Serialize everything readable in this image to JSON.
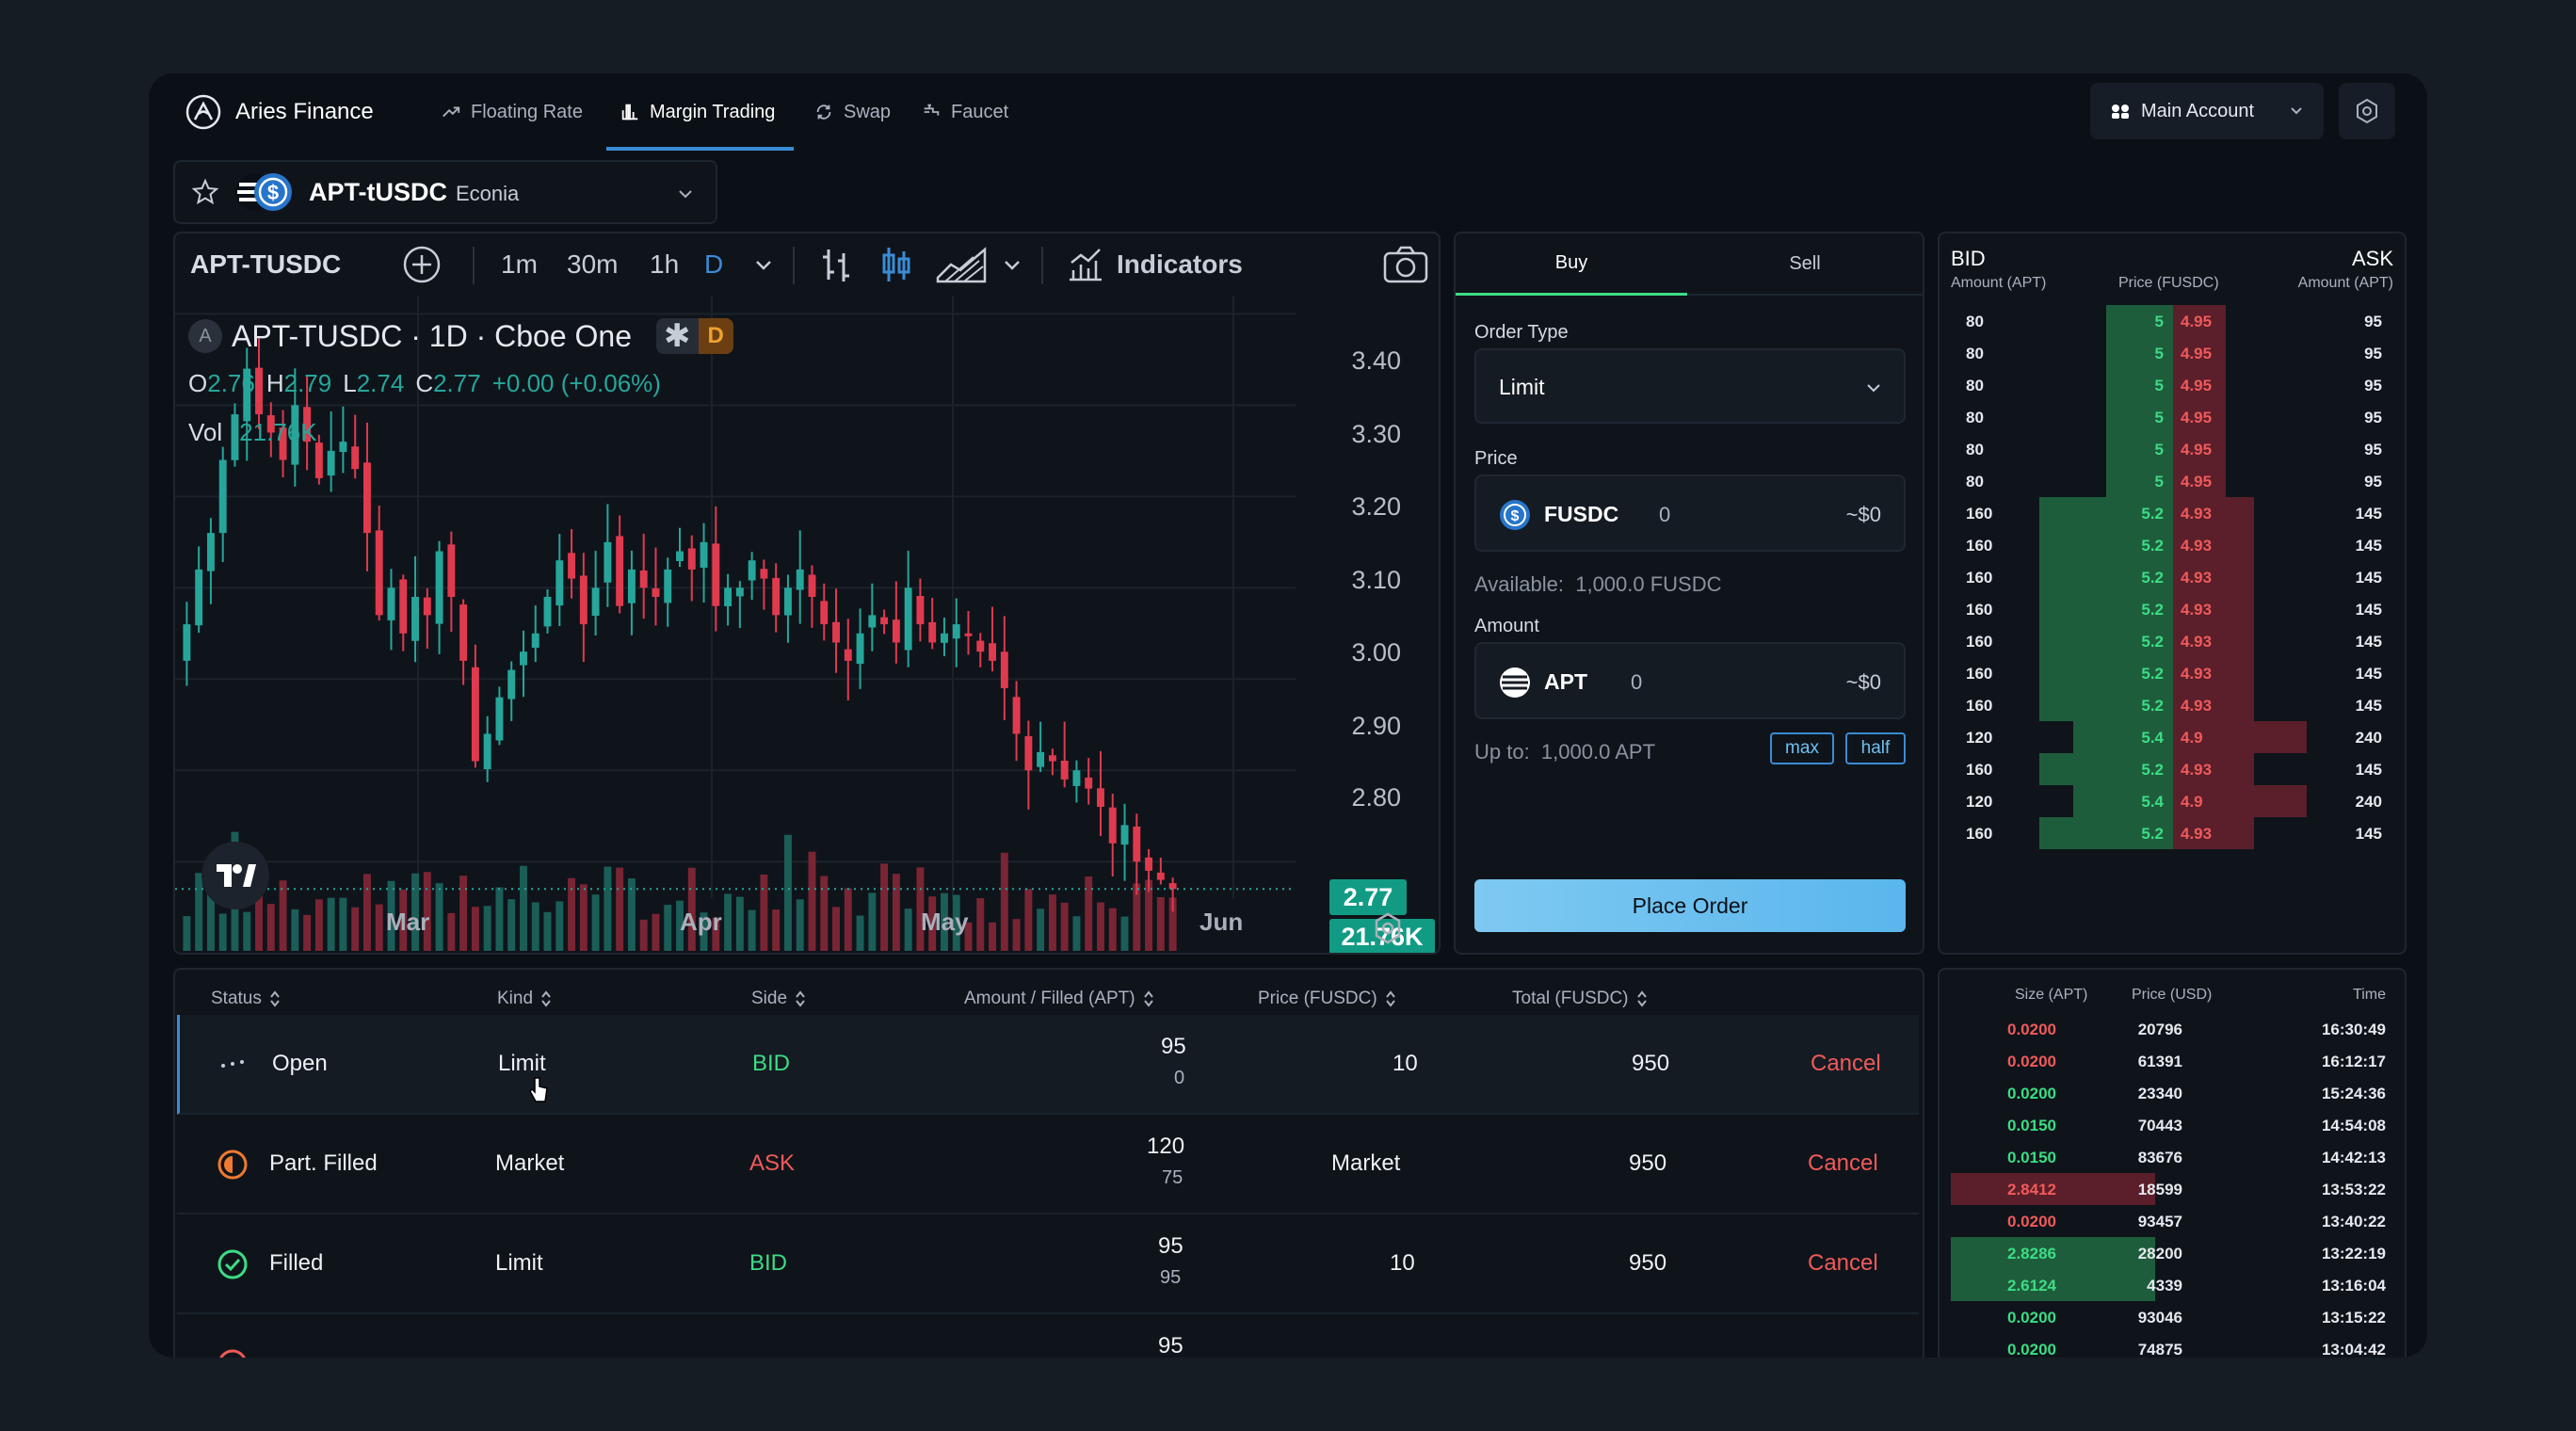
{
  "app": {
    "name": "Aries Finance",
    "nav": [
      {
        "label": "Floating Rate",
        "icon": "trending-up-icon",
        "active": false
      },
      {
        "label": "Margin Trading",
        "icon": "bar-chart-icon",
        "active": true
      },
      {
        "label": "Swap",
        "icon": "swap-icon",
        "active": false
      },
      {
        "label": "Faucet",
        "icon": "faucet-icon",
        "active": false
      }
    ],
    "account": "Main Account"
  },
  "pair_selector": {
    "pair": "APT-tUSDC",
    "exchange": "Econia"
  },
  "chart_toolbar": {
    "symbol": "APT-TUSDC",
    "intervals": [
      "1m",
      "30m",
      "1h",
      "D"
    ],
    "active_interval": "D",
    "indicators_label": "Indicators"
  },
  "chart_legend": {
    "title": "APT-TUSDC · 1D · Cboe One",
    "badge": "D",
    "o_label": "O",
    "o": "2.76",
    "h_label": "H",
    "h": "2.79",
    "l_label": "L",
    "l": "2.74",
    "c_label": "C",
    "c": "2.77",
    "change": "+0.00 (+0.06%)",
    "vol_label": "Vol",
    "vol": "21.76K"
  },
  "chart_data": {
    "type": "candlestick",
    "title": "APT-TUSDC · 1D · Cboe One",
    "y_ticks": [
      "3.40",
      "3.30",
      "3.20",
      "3.10",
      "3.00",
      "2.90",
      "2.80"
    ],
    "ylim": [
      2.76,
      3.42
    ],
    "x_ticks": [
      "Mar",
      "Apr",
      "May",
      "Jun"
    ],
    "last_price": "2.77",
    "last_volume": "21.76K",
    "closes": [
      3.06,
      3.12,
      3.16,
      3.24,
      3.29,
      3.34,
      3.29,
      3.27,
      3.24,
      3.3,
      3.26,
      3.22,
      3.25,
      3.26,
      3.23,
      3.16,
      3.07,
      3.1,
      3.05,
      3.09,
      3.07,
      3.14,
      3.09,
      3.02,
      2.91,
      2.94,
      2.98,
      3.01,
      3.03,
      3.05,
      3.09,
      3.13,
      3.11,
      3.06,
      3.1,
      3.15,
      3.08,
      3.12,
      3.1,
      3.09,
      3.12,
      3.14,
      3.12,
      3.15,
      3.08,
      3.1,
      3.1,
      3.13,
      3.11,
      3.07,
      3.1,
      3.12,
      3.09,
      3.06,
      3.04,
      3.02,
      3.05,
      3.07,
      3.06,
      3.04,
      3.1,
      3.06,
      3.04,
      3.05,
      3.06,
      3.05,
      3.03,
      3.02,
      2.99,
      2.94,
      2.9,
      2.92,
      2.91,
      2.89,
      2.9,
      2.88,
      2.86,
      2.82,
      2.84,
      2.8,
      2.79,
      2.78,
      2.77
    ],
    "volume_label": "Vol"
  },
  "order_form": {
    "tabs": [
      "Buy",
      "Sell"
    ],
    "active_tab": "Buy",
    "order_type_label": "Order Type",
    "order_type": "Limit",
    "price_label": "Price",
    "price_token": "FUSDC",
    "price_value": "0",
    "price_usd": "~$0",
    "available": "Available:  1,000.0 FUSDC",
    "amount_label": "Amount",
    "amount_token": "APT",
    "amount_value": "0",
    "amount_usd": "~$0",
    "up_to": "Up to:  1,000.0 APT",
    "max_label": "max",
    "half_label": "half",
    "place_order": "Place Order"
  },
  "orderbook": {
    "bid_label": "BID",
    "ask_label": "ASK",
    "headers": [
      "Amount (APT)",
      "Price (FUSDC)",
      "Amount (APT)"
    ],
    "rows": [
      {
        "bid_amt": "80",
        "bid_price": "5",
        "ask_price": "4.95",
        "ask_amt": "95"
      },
      {
        "bid_amt": "80",
        "bid_price": "5",
        "ask_price": "4.95",
        "ask_amt": "95"
      },
      {
        "bid_amt": "80",
        "bid_price": "5",
        "ask_price": "4.95",
        "ask_amt": "95"
      },
      {
        "bid_amt": "80",
        "bid_price": "5",
        "ask_price": "4.95",
        "ask_amt": "95"
      },
      {
        "bid_amt": "80",
        "bid_price": "5",
        "ask_price": "4.95",
        "ask_amt": "95"
      },
      {
        "bid_amt": "80",
        "bid_price": "5",
        "ask_price": "4.95",
        "ask_amt": "95"
      },
      {
        "bid_amt": "160",
        "bid_price": "5.2",
        "ask_price": "4.93",
        "ask_amt": "145"
      },
      {
        "bid_amt": "160",
        "bid_price": "5.2",
        "ask_price": "4.93",
        "ask_amt": "145"
      },
      {
        "bid_amt": "160",
        "bid_price": "5.2",
        "ask_price": "4.93",
        "ask_amt": "145"
      },
      {
        "bid_amt": "160",
        "bid_price": "5.2",
        "ask_price": "4.93",
        "ask_amt": "145"
      },
      {
        "bid_amt": "160",
        "bid_price": "5.2",
        "ask_price": "4.93",
        "ask_amt": "145"
      },
      {
        "bid_amt": "160",
        "bid_price": "5.2",
        "ask_price": "4.93",
        "ask_amt": "145"
      },
      {
        "bid_amt": "160",
        "bid_price": "5.2",
        "ask_price": "4.93",
        "ask_amt": "145"
      },
      {
        "bid_amt": "120",
        "bid_price": "5.4",
        "ask_price": "4.9",
        "ask_amt": "240"
      },
      {
        "bid_amt": "160",
        "bid_price": "5.2",
        "ask_price": "4.93",
        "ask_amt": "145"
      },
      {
        "bid_amt": "120",
        "bid_price": "5.4",
        "ask_price": "4.9",
        "ask_amt": "240"
      },
      {
        "bid_amt": "160",
        "bid_price": "5.2",
        "ask_price": "4.93",
        "ask_amt": "145"
      }
    ]
  },
  "orders": {
    "headers": [
      "Status",
      "Kind",
      "Side",
      "Amount / Filled (APT)",
      "Price (FUSDC)",
      "Total (FUSDC)"
    ],
    "rows": [
      {
        "status": "Open",
        "status_icon": "pending-dots-icon",
        "kind": "Limit",
        "side": "BID",
        "amount": "95",
        "filled": "0",
        "price": "10",
        "total": "950",
        "action": "Cancel"
      },
      {
        "status": "Part. Filled",
        "status_icon": "half-circle-icon",
        "kind": "Market",
        "side": "ASK",
        "amount": "120",
        "filled": "75",
        "price": "Market",
        "total": "950",
        "action": "Cancel"
      },
      {
        "status": "Filled",
        "status_icon": "check-circle-icon",
        "kind": "Limit",
        "side": "BID",
        "amount": "95",
        "filled": "95",
        "price": "10",
        "total": "950",
        "action": "Cancel"
      },
      {
        "status": "",
        "status_icon": "cancel-circle-icon",
        "kind": "",
        "side": "",
        "amount": "95",
        "filled": "",
        "price": "",
        "total": "",
        "action": ""
      }
    ]
  },
  "trades": {
    "headers": [
      "Size (APT)",
      "Price (USD)",
      "Time"
    ],
    "rows": [
      {
        "size": "0.0200",
        "price": "20796",
        "time": "16:30:49",
        "side": "sell",
        "fill": 0
      },
      {
        "size": "0.0200",
        "price": "61391",
        "time": "16:12:17",
        "side": "sell",
        "fill": 0
      },
      {
        "size": "0.0200",
        "price": "23340",
        "time": "15:24:36",
        "side": "buy",
        "fill": 0
      },
      {
        "size": "0.0150",
        "price": "70443",
        "time": "14:54:08",
        "side": "buy",
        "fill": 0
      },
      {
        "size": "0.0150",
        "price": "83676",
        "time": "14:42:13",
        "side": "buy",
        "fill": 0
      },
      {
        "size": "2.8412",
        "price": "18599",
        "time": "13:53:22",
        "side": "sell",
        "fill": 0.46
      },
      {
        "size": "0.0200",
        "price": "93457",
        "time": "13:40:22",
        "side": "sell",
        "fill": 0
      },
      {
        "size": "2.8286",
        "price": "28200",
        "time": "13:22:19",
        "side": "buy",
        "fill": 0.46
      },
      {
        "size": "2.6124",
        "price": "4339",
        "time": "13:16:04",
        "side": "buy",
        "fill": 0.46
      },
      {
        "size": "0.0200",
        "price": "93046",
        "time": "13:15:22",
        "side": "buy",
        "fill": 0
      },
      {
        "size": "0.0200",
        "price": "74875",
        "time": "13:04:42",
        "side": "buy",
        "fill": 0
      }
    ]
  },
  "colors": {
    "bg": "#0b1016",
    "panel": "#0f141b",
    "accent": "#3b8bd4",
    "green": "#26a69a",
    "green_text": "#3ddc84",
    "red": "#e03a4e",
    "red_text": "#f05a5a",
    "button": "#6ec0f0"
  }
}
